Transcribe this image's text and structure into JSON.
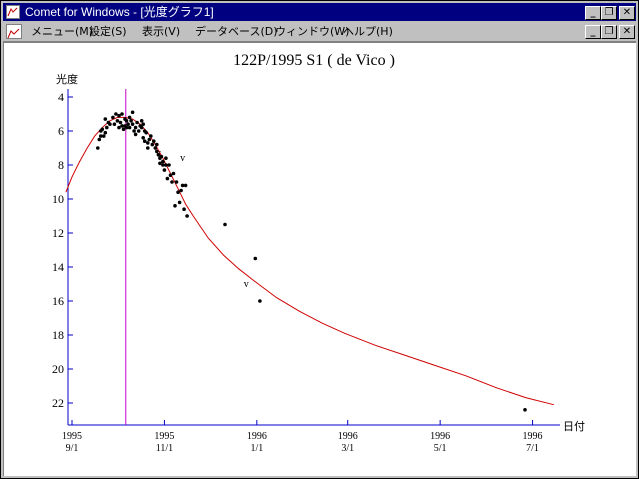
{
  "window": {
    "title": "Comet for Windows - [光度グラフ1]",
    "buttons": {
      "minimize": "_",
      "restore": "❐",
      "close": "✕"
    }
  },
  "menu": {
    "items": [
      "メニュー(M)",
      "設定(S)",
      "表示(V)",
      "データベース(D)",
      "ウィンドウ(W)",
      "ヘルプ(H)"
    ]
  },
  "chart_data": {
    "type": "scatter",
    "title": "122P/1995 S1 ( de Vico )",
    "ylabel": "光度",
    "xlabel": "日付",
    "ylim": [
      4,
      22
    ],
    "y_inverted": true,
    "y_ticks": [
      4,
      6,
      8,
      10,
      12,
      14,
      16,
      18,
      20,
      22
    ],
    "x_ticks": [
      {
        "day": 0,
        "year": "1995",
        "date": "9/1"
      },
      {
        "day": 61,
        "year": "1995",
        "date": "11/1"
      },
      {
        "day": 122,
        "year": "1996",
        "date": "1/1"
      },
      {
        "day": 182,
        "year": "1996",
        "date": "3/1"
      },
      {
        "day": 243,
        "year": "1996",
        "date": "5/1"
      },
      {
        "day": 304,
        "year": "1996",
        "date": "7/1"
      }
    ],
    "perihelion_day": 35.5,
    "series": [
      {
        "kind": "observations",
        "points": [
          [
            17,
            7.0
          ],
          [
            18,
            6.5
          ],
          [
            19,
            6.3
          ],
          [
            19,
            6.0
          ],
          [
            20,
            5.9
          ],
          [
            21,
            6.3
          ],
          [
            22,
            6.1
          ],
          [
            22,
            5.3
          ],
          [
            23,
            5.8
          ],
          [
            24,
            5.5
          ],
          [
            25,
            5.6
          ],
          [
            27,
            5.2
          ],
          [
            28,
            5.6
          ],
          [
            29,
            5.0
          ],
          [
            30,
            5.4
          ],
          [
            31,
            5.8
          ],
          [
            31,
            5.1
          ],
          [
            32,
            5.5
          ],
          [
            33,
            5.7
          ],
          [
            33,
            5.0
          ],
          [
            34,
            5.9
          ],
          [
            35,
            5.3
          ],
          [
            35,
            5.7
          ],
          [
            36,
            5.8
          ],
          [
            36,
            5.4
          ],
          [
            37,
            5.6
          ],
          [
            38,
            5.2
          ],
          [
            38,
            5.8
          ],
          [
            39,
            5.4
          ],
          [
            40,
            4.9
          ],
          [
            40,
            5.6
          ],
          [
            41,
            6.0
          ],
          [
            42,
            5.8
          ],
          [
            42,
            6.2
          ],
          [
            43,
            5.5
          ],
          [
            44,
            6.0
          ],
          [
            45,
            5.7
          ],
          [
            46,
            5.4
          ],
          [
            46,
            5.8
          ],
          [
            47,
            6.4
          ],
          [
            47,
            5.6
          ],
          [
            48,
            6.6
          ],
          [
            48,
            6.0
          ],
          [
            49,
            6.1
          ],
          [
            50,
            6.7
          ],
          [
            50,
            7.0
          ],
          [
            51,
            6.5
          ],
          [
            52,
            6.3
          ],
          [
            53,
            6.8
          ],
          [
            54,
            6.6
          ],
          [
            55,
            7.0
          ],
          [
            56,
            7.2
          ],
          [
            56,
            6.8
          ],
          [
            57,
            7.4
          ],
          [
            58,
            7.6
          ],
          [
            58,
            7.9
          ],
          [
            59,
            7.5
          ],
          [
            60,
            7.8
          ],
          [
            60,
            8.0
          ],
          [
            61,
            8.3
          ],
          [
            62,
            7.6
          ],
          [
            62,
            8.0
          ],
          [
            63,
            8.8
          ],
          [
            64,
            8.0
          ],
          [
            65,
            8.6
          ],
          [
            66,
            9.0
          ],
          [
            67,
            8.5
          ],
          [
            68,
            10.4
          ],
          [
            69,
            9.0
          ],
          [
            70,
            9.6
          ],
          [
            71,
            10.2
          ],
          [
            72,
            9.5
          ],
          [
            73,
            9.2
          ],
          [
            74,
            10.6
          ],
          [
            75,
            9.2
          ],
          [
            76,
            11.0
          ],
          [
            101,
            11.5
          ],
          [
            121,
            13.5
          ],
          [
            124,
            16.0
          ],
          [
            299,
            22.4
          ]
        ]
      },
      {
        "kind": "upper-limits",
        "marker": "v",
        "points": [
          [
            57,
            7.3
          ],
          [
            73,
            7.6
          ],
          [
            115,
            15.0
          ]
        ]
      },
      {
        "kind": "fitted-curve",
        "points": [
          [
            -4,
            9.6
          ],
          [
            0,
            8.7
          ],
          [
            5,
            7.8
          ],
          [
            10,
            7.0
          ],
          [
            15,
            6.3
          ],
          [
            20,
            5.8
          ],
          [
            25,
            5.4
          ],
          [
            30,
            5.2
          ],
          [
            35,
            5.2
          ],
          [
            40,
            5.3
          ],
          [
            45,
            5.6
          ],
          [
            50,
            6.1
          ],
          [
            55,
            6.8
          ],
          [
            60,
            7.6
          ],
          [
            65,
            8.5
          ],
          [
            70,
            9.4
          ],
          [
            75,
            10.3
          ],
          [
            80,
            11.0
          ],
          [
            90,
            12.3
          ],
          [
            100,
            13.3
          ],
          [
            110,
            14.1
          ],
          [
            120,
            14.8
          ],
          [
            135,
            15.8
          ],
          [
            150,
            16.6
          ],
          [
            165,
            17.3
          ],
          [
            180,
            17.9
          ],
          [
            200,
            18.6
          ],
          [
            220,
            19.2
          ],
          [
            240,
            19.8
          ],
          [
            260,
            20.4
          ],
          [
            280,
            21.1
          ],
          [
            300,
            21.7
          ],
          [
            318,
            22.1
          ]
        ]
      }
    ]
  }
}
